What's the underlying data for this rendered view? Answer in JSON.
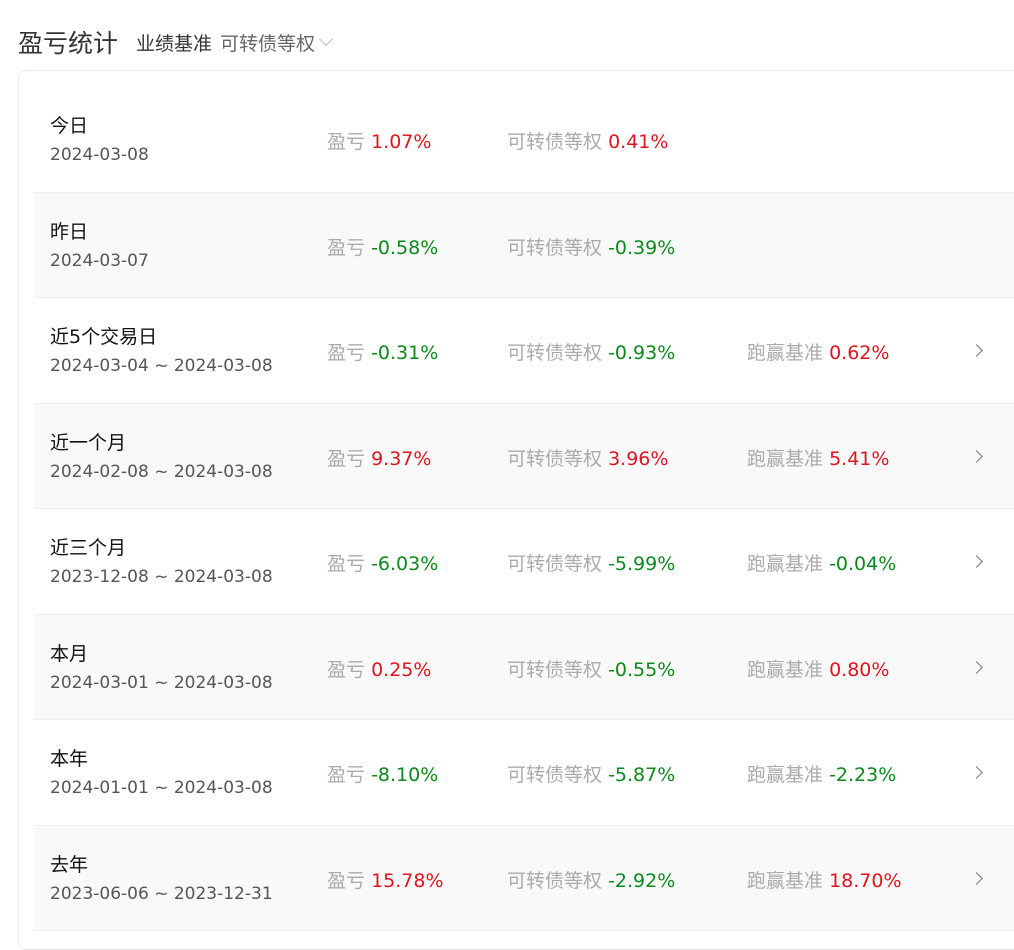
{
  "header": {
    "title": "盈亏统计",
    "benchmark_label": "业绩基准",
    "benchmark_value": "可转债等权"
  },
  "colors": {
    "up": "#e0141e",
    "down": "#0a8a1a"
  },
  "labels": {
    "pnl": "盈亏",
    "bench": "可转债等权",
    "excess": "跑赢基准"
  },
  "rows": [
    {
      "name": "今日",
      "date": "2024-03-08",
      "pnl": "1.07%",
      "bench": "0.41%"
    },
    {
      "name": "昨日",
      "date": "2024-03-07",
      "pnl": "-0.58%",
      "bench": "-0.39%"
    },
    {
      "name": "近5个交易日",
      "date": "2024-03-04 ~ 2024-03-08",
      "pnl": "-0.31%",
      "bench": "-0.93%",
      "excess": "0.62%"
    },
    {
      "name": "近一个月",
      "date": "2024-02-08 ~ 2024-03-08",
      "pnl": "9.37%",
      "bench": "3.96%",
      "excess": "5.41%"
    },
    {
      "name": "近三个月",
      "date": "2023-12-08 ~ 2024-03-08",
      "pnl": "-6.03%",
      "bench": "-5.99%",
      "excess": "-0.04%"
    },
    {
      "name": "本月",
      "date": "2024-03-01 ~ 2024-03-08",
      "pnl": "0.25%",
      "bench": "-0.55%",
      "excess": "0.80%"
    },
    {
      "name": "本年",
      "date": "2024-01-01 ~ 2024-03-08",
      "pnl": "-8.10%",
      "bench": "-5.87%",
      "excess": "-2.23%"
    },
    {
      "name": "去年",
      "date": "2023-06-06 ~ 2023-12-31",
      "pnl": "15.78%",
      "bench": "-2.92%",
      "excess": "18.70%"
    }
  ]
}
